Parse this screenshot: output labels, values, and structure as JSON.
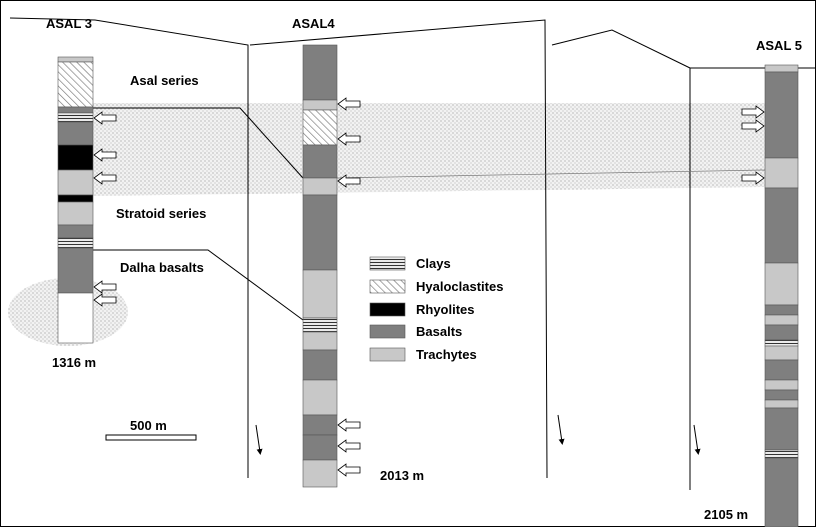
{
  "wells": [
    {
      "label": "ASAL 3",
      "depth": "1316 m"
    },
    {
      "label": "ASAL4",
      "depth": "2013 m"
    },
    {
      "label": "ASAL 5",
      "depth": "2105 m"
    }
  ],
  "units": [
    "Asal series",
    "Stratoid series",
    "Dalha basalts"
  ],
  "legend": [
    "Clays",
    "Hyaloclastites",
    "Rhyolites",
    "Basalts",
    "Trachytes"
  ],
  "scale_bar": "500 m"
}
